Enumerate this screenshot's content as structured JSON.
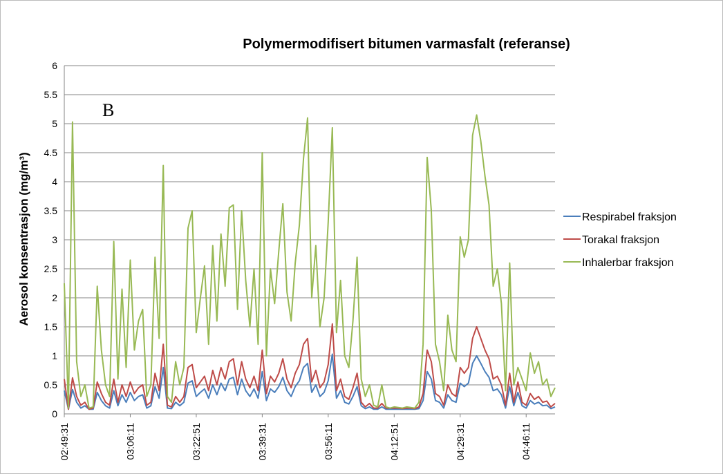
{
  "chart_data": {
    "type": "line",
    "title": "Polymermodifisert bitumen varmasfalt (referanse)",
    "y_label": "Aerosol konsentrasjon (mg/m³)",
    "annotation": "B",
    "categories": [
      "02:49:31",
      null,
      null,
      null,
      null,
      null,
      null,
      null,
      null,
      null,
      null,
      null,
      null,
      null,
      null,
      null,
      "03:06:11",
      null,
      null,
      null,
      null,
      null,
      null,
      null,
      null,
      null,
      null,
      null,
      null,
      null,
      null,
      null,
      "03:22:51",
      null,
      null,
      null,
      null,
      null,
      null,
      null,
      null,
      null,
      null,
      null,
      null,
      null,
      null,
      null,
      "03:39:31",
      null,
      null,
      null,
      null,
      null,
      null,
      null,
      null,
      null,
      null,
      null,
      null,
      null,
      null,
      null,
      "03:56:11",
      null,
      null,
      null,
      null,
      null,
      null,
      null,
      null,
      null,
      null,
      null,
      null,
      null,
      null,
      null,
      "04:12:51",
      null,
      null,
      null,
      null,
      null,
      null,
      null,
      null,
      null,
      null,
      null,
      null,
      null,
      null,
      null,
      "04:29:31",
      null,
      null,
      null,
      null,
      null,
      null,
      null,
      null,
      null,
      null,
      null,
      null,
      null,
      null,
      null,
      "04:46:11",
      null,
      null,
      null,
      null,
      null,
      null,
      null
    ],
    "series": [
      {
        "name": "Respirabel fraksjon",
        "color": "#4a7ebb",
        "values": [
          0.4,
          0.08,
          0.42,
          0.2,
          0.1,
          0.14,
          0.08,
          0.08,
          0.37,
          0.23,
          0.14,
          0.1,
          0.4,
          0.14,
          0.33,
          0.2,
          0.37,
          0.23,
          0.3,
          0.33,
          0.1,
          0.14,
          0.47,
          0.27,
          0.8,
          0.1,
          0.09,
          0.2,
          0.14,
          0.2,
          0.53,
          0.57,
          0.3,
          0.37,
          0.43,
          0.27,
          0.5,
          0.33,
          0.53,
          0.4,
          0.6,
          0.63,
          0.33,
          0.6,
          0.4,
          0.3,
          0.43,
          0.27,
          0.73,
          0.23,
          0.43,
          0.37,
          0.47,
          0.63,
          0.4,
          0.3,
          0.47,
          0.57,
          0.8,
          0.87,
          0.37,
          0.5,
          0.3,
          0.37,
          0.57,
          1.03,
          0.27,
          0.4,
          0.2,
          0.17,
          0.3,
          0.47,
          0.14,
          0.09,
          0.12,
          0.08,
          0.08,
          0.12,
          0.08,
          0.08,
          0.08,
          0.08,
          0.08,
          0.08,
          0.08,
          0.08,
          0.09,
          0.23,
          0.73,
          0.6,
          0.23,
          0.2,
          0.1,
          0.33,
          0.23,
          0.2,
          0.53,
          0.47,
          0.53,
          0.87,
          1.0,
          0.87,
          0.73,
          0.63,
          0.4,
          0.43,
          0.33,
          0.1,
          0.47,
          0.14,
          0.37,
          0.14,
          0.1,
          0.23,
          0.17,
          0.2,
          0.14,
          0.15,
          0.09,
          0.12
        ]
      },
      {
        "name": "Torakal fraksjon",
        "color": "#be4b48",
        "values": [
          0.6,
          0.08,
          0.62,
          0.3,
          0.15,
          0.2,
          0.08,
          0.1,
          0.55,
          0.35,
          0.2,
          0.15,
          0.6,
          0.2,
          0.5,
          0.3,
          0.55,
          0.35,
          0.45,
          0.5,
          0.15,
          0.2,
          0.7,
          0.4,
          1.2,
          0.15,
          0.12,
          0.3,
          0.2,
          0.3,
          0.8,
          0.85,
          0.45,
          0.55,
          0.65,
          0.4,
          0.75,
          0.5,
          0.8,
          0.6,
          0.9,
          0.95,
          0.5,
          0.9,
          0.6,
          0.45,
          0.65,
          0.4,
          1.1,
          0.35,
          0.65,
          0.55,
          0.7,
          0.95,
          0.6,
          0.45,
          0.7,
          0.85,
          1.2,
          1.3,
          0.55,
          0.75,
          0.45,
          0.55,
          0.85,
          1.55,
          0.4,
          0.6,
          0.3,
          0.25,
          0.45,
          0.7,
          0.2,
          0.12,
          0.18,
          0.1,
          0.1,
          0.18,
          0.1,
          0.1,
          0.1,
          0.1,
          0.09,
          0.1,
          0.1,
          0.09,
          0.12,
          0.35,
          1.1,
          0.9,
          0.35,
          0.3,
          0.15,
          0.5,
          0.35,
          0.3,
          0.8,
          0.7,
          0.8,
          1.3,
          1.5,
          1.3,
          1.1,
          0.95,
          0.6,
          0.65,
          0.5,
          0.15,
          0.7,
          0.2,
          0.55,
          0.2,
          0.15,
          0.35,
          0.25,
          0.3,
          0.2,
          0.22,
          0.12,
          0.18
        ]
      },
      {
        "name": "Inhalerbar fraksjon",
        "color": "#98b954",
        "values": [
          2.25,
          0.1,
          5.03,
          0.9,
          0.3,
          0.5,
          0.1,
          0.12,
          2.2,
          1.1,
          0.5,
          0.3,
          2.97,
          0.6,
          2.15,
          0.8,
          2.65,
          1.1,
          1.6,
          1.8,
          0.3,
          0.5,
          2.7,
          1.3,
          4.28,
          0.3,
          0.2,
          0.9,
          0.5,
          0.8,
          3.2,
          3.5,
          1.4,
          2.0,
          2.55,
          1.2,
          2.9,
          1.6,
          3.1,
          2.2,
          3.55,
          3.6,
          1.8,
          3.5,
          2.3,
          1.5,
          2.5,
          1.2,
          4.5,
          1.0,
          2.5,
          1.9,
          2.8,
          3.62,
          2.1,
          1.6,
          2.6,
          3.25,
          4.4,
          5.1,
          2.0,
          2.9,
          1.5,
          2.0,
          3.3,
          4.93,
          1.4,
          2.3,
          1.0,
          0.8,
          1.6,
          2.7,
          0.6,
          0.3,
          0.5,
          0.15,
          0.12,
          0.5,
          0.12,
          0.1,
          0.12,
          0.11,
          0.1,
          0.12,
          0.11,
          0.1,
          0.2,
          1.2,
          4.42,
          3.5,
          1.2,
          0.9,
          0.4,
          1.7,
          1.1,
          0.9,
          3.05,
          2.7,
          3.0,
          4.8,
          5.15,
          4.7,
          4.1,
          3.6,
          2.2,
          2.5,
          1.9,
          0.4,
          2.6,
          0.5,
          0.8,
          0.6,
          0.4,
          1.05,
          0.7,
          0.9,
          0.5,
          0.6,
          0.3,
          0.45
        ]
      }
    ],
    "ylim": [
      0,
      6
    ],
    "yticks": [
      0,
      0.5,
      1,
      1.5,
      2,
      2.5,
      3,
      3.5,
      4,
      4.5,
      5,
      5.5,
      6
    ],
    "grid": true,
    "legend": "right"
  }
}
